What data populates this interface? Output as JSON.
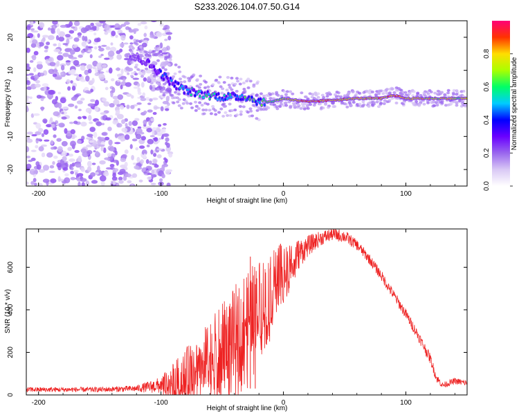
{
  "title": "S233.2026.104.07.50.G14",
  "chart_data": [
    {
      "type": "heatmap",
      "name": "spectrogram",
      "xlabel": "Height of straight line (km)",
      "ylabel": "Frequency (Hz)",
      "xlim": [
        -210,
        150
      ],
      "ylim": [
        -25,
        25
      ],
      "xticks": [
        -200,
        -100,
        0,
        100
      ],
      "yticks": [
        -20,
        -10,
        0,
        10,
        20
      ],
      "colorbar": {
        "label": "Normalized spectral amplitude",
        "range": [
          0,
          1
        ],
        "ticks": [
          "0.0",
          "0.2",
          "0.4",
          "0.6",
          "0.8"
        ],
        "colors": [
          "#ffffff",
          "#d9c8f5",
          "#9966ee",
          "#6a00ff",
          "#0000ff",
          "#00ccff",
          "#00ff66",
          "#aaff00",
          "#ffdd00",
          "#ff3300",
          "#ff0077"
        ]
      },
      "ridge": {
        "height_km": [
          -120,
          -110,
          -100,
          -90,
          -80,
          -70,
          -60,
          -50,
          -40,
          -30,
          -20,
          -10,
          0,
          10,
          20,
          40,
          60,
          80,
          90,
          100,
          120,
          150
        ],
        "frequency_hz": [
          14,
          12,
          9,
          6,
          4,
          3,
          2.5,
          2,
          2,
          2,
          0.5,
          0.5,
          1.5,
          1,
          0.5,
          1,
          1.5,
          1.5,
          2.5,
          1.5,
          1.5,
          1.5
        ],
        "amplitude": [
          0.2,
          0.3,
          0.4,
          0.45,
          0.5,
          0.5,
          0.55,
          0.55,
          0.5,
          0.55,
          0.6,
          0.65,
          0.7,
          0.8,
          0.85,
          0.8,
          0.75,
          0.8,
          0.85,
          0.8,
          0.75,
          0.7
        ]
      },
      "noise_region_km": [
        -210,
        -100
      ]
    },
    {
      "type": "line",
      "name": "snr",
      "xlabel": "Height of straight line (km)",
      "ylabel": "SNR (10 * v/v)",
      "xlim": [
        -210,
        150
      ],
      "ylim": [
        0,
        780
      ],
      "xticks": [
        -200,
        -100,
        0,
        100
      ],
      "yticks": [
        0,
        200,
        400,
        600
      ],
      "color": "#ee2222",
      "envelope": {
        "x": [
          -210,
          -150,
          -120,
          -100,
          -90,
          -80,
          -70,
          -60,
          -50,
          -40,
          -30,
          -20,
          -10,
          0,
          10,
          20,
          30,
          40,
          50,
          60,
          70,
          80,
          90,
          100,
          110,
          120,
          125,
          130,
          140,
          150
        ],
        "y": [
          25,
          25,
          30,
          45,
          70,
          110,
          150,
          190,
          240,
          300,
          370,
          440,
          520,
          600,
          650,
          700,
          735,
          755,
          745,
          705,
          640,
          560,
          470,
          380,
          280,
          170,
          80,
          45,
          65,
          55
        ],
        "spread": [
          12,
          12,
          15,
          40,
          80,
          110,
          130,
          160,
          190,
          210,
          230,
          200,
          170,
          120,
          80,
          50,
          35,
          30,
          30,
          25,
          25,
          25,
          25,
          25,
          25,
          25,
          20,
          15,
          15,
          15
        ]
      },
      "spikes": [
        {
          "x": -27,
          "y": 650
        },
        {
          "x": -23,
          "y": 520
        }
      ]
    }
  ]
}
